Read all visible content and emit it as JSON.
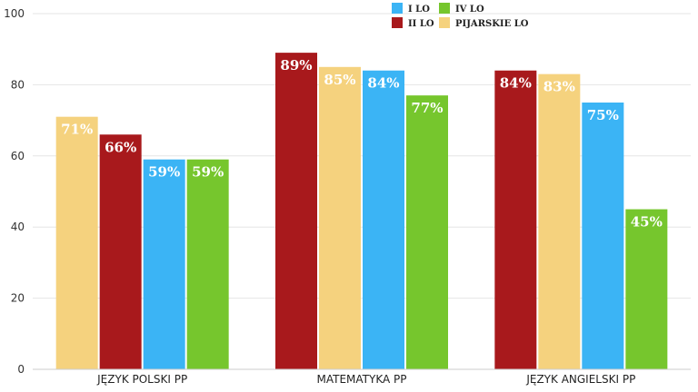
{
  "chart_data": {
    "type": "bar",
    "categories": [
      "JĘZYK POLSKI PP",
      "MATEMATYKA PP",
      "JĘZYK ANGIELSKI PP"
    ],
    "ylim": [
      0,
      100
    ],
    "yticks": [
      0,
      20,
      40,
      60,
      80,
      100
    ],
    "grid": true,
    "legend_position": "top-right",
    "value_suffix": "%",
    "series": [
      {
        "name": "PIJARSKIE LO",
        "color": "#f5d27e",
        "values": [
          71,
          85,
          83
        ]
      },
      {
        "name": "II LO",
        "color": "#a8191c",
        "values": [
          66,
          89,
          84
        ]
      },
      {
        "name": "I LO",
        "color": "#3bb4f5",
        "values": [
          59,
          84,
          75
        ]
      },
      {
        "name": "IV LO",
        "color": "#76c62d",
        "values": [
          59,
          77,
          45
        ]
      }
    ],
    "bar_order": [
      [
        "PIJARSKIE LO",
        "II LO",
        "I LO",
        "IV LO"
      ],
      [
        "II LO",
        "PIJARSKIE LO",
        "I LO",
        "IV LO"
      ],
      [
        "II LO",
        "PIJARSKIE LO",
        "I LO",
        "IV LO"
      ]
    ],
    "legend_order": [
      "I LO",
      "IV LO",
      "II LO",
      "PIJARSKIE LO"
    ]
  }
}
